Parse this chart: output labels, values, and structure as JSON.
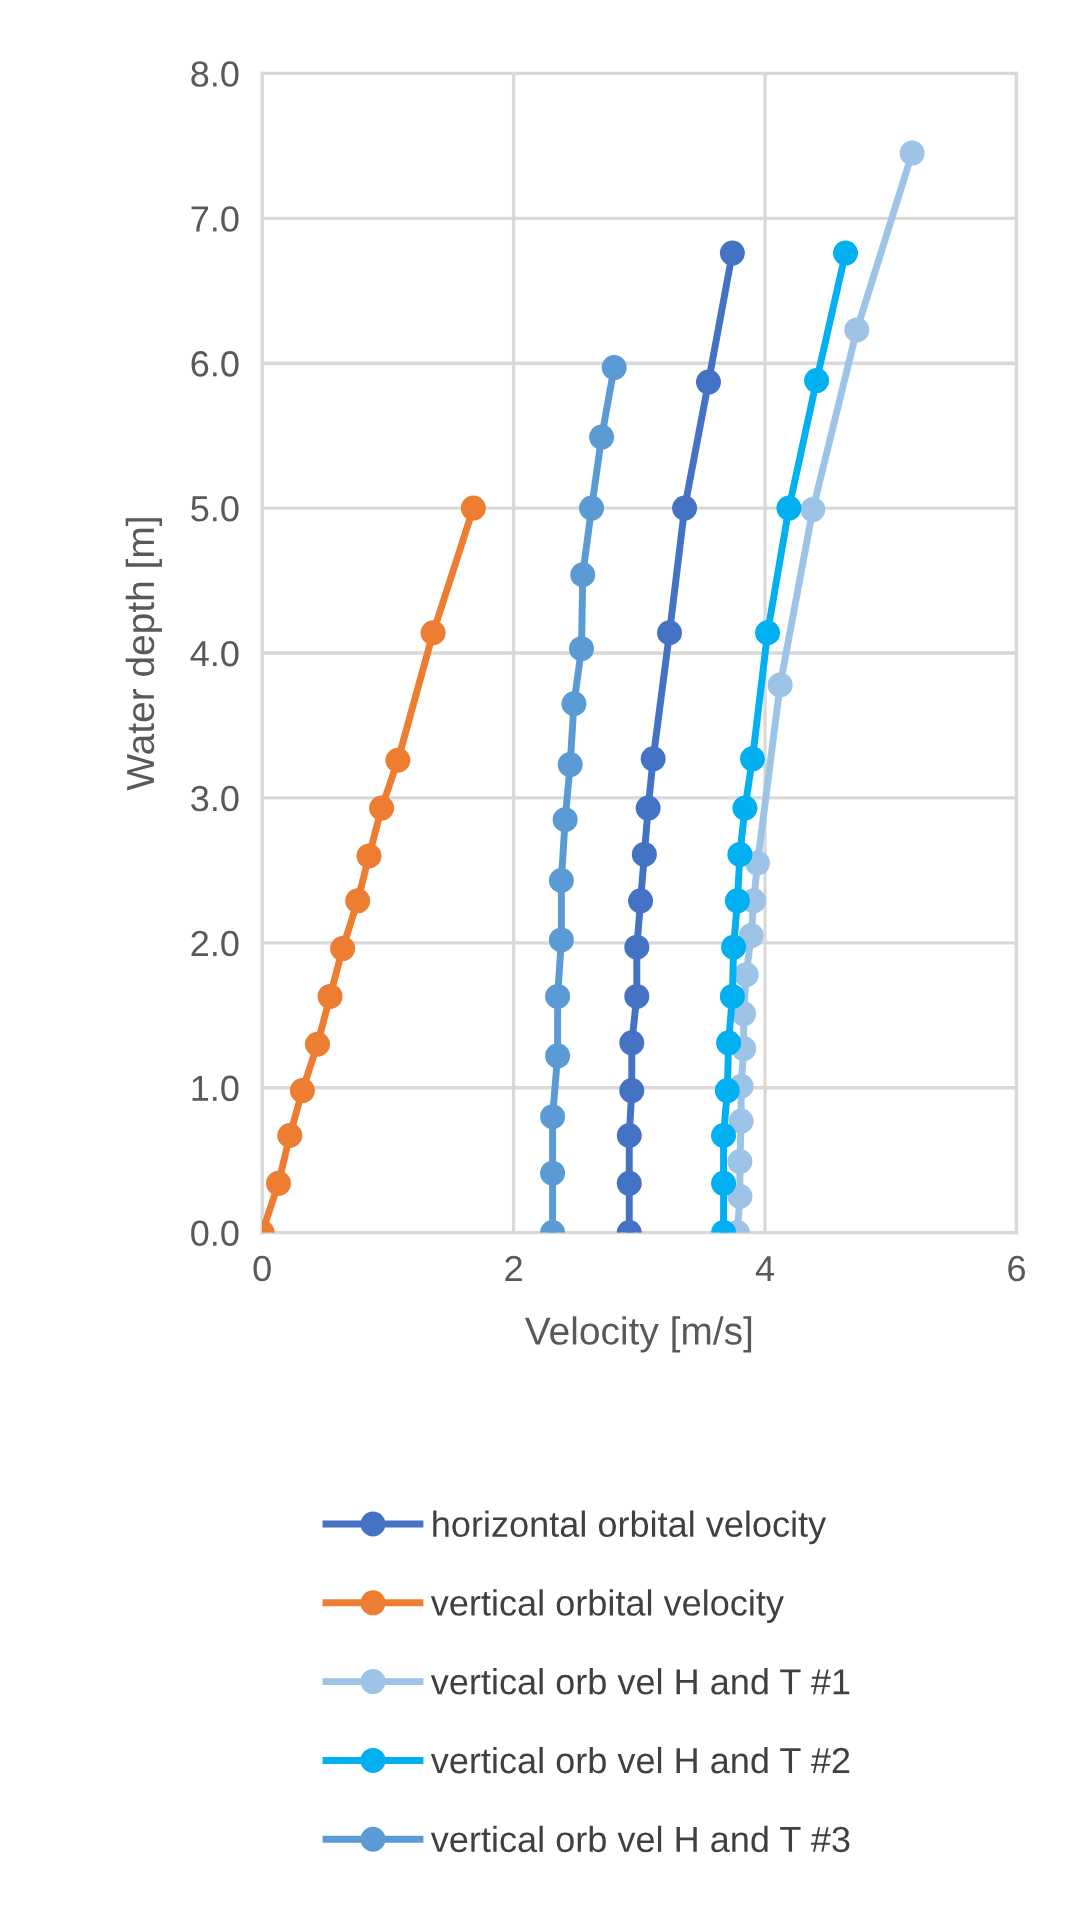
{
  "chart_data": {
    "type": "line",
    "xlabel": "Velocity [m/s]",
    "ylabel": "Water depth [m]",
    "xlim": [
      0,
      6
    ],
    "xticks": [
      0,
      2,
      4,
      6
    ],
    "ylim": [
      0,
      8
    ],
    "yticks": [
      {
        "value": 0,
        "label": "0.0"
      },
      {
        "value": 1,
        "label": "1.0"
      },
      {
        "value": 2,
        "label": "2.0"
      },
      {
        "value": 3,
        "label": "3.0"
      },
      {
        "value": 4,
        "label": "4.0"
      },
      {
        "value": 5,
        "label": "5.0"
      },
      {
        "value": 6,
        "label": "6.0"
      },
      {
        "value": 7,
        "label": "7.0"
      },
      {
        "value": 8,
        "label": "8.0"
      }
    ],
    "grid": true,
    "legend": "bottom",
    "marker": "circle",
    "line_style": "solid",
    "series": [
      {
        "name": "horizontal orbital velocity",
        "color": "#4472c4",
        "x": [
          2.92,
          2.92,
          2.92,
          2.94,
          2.94,
          2.98,
          2.98,
          3.01,
          3.04,
          3.07,
          3.11,
          3.24,
          3.36,
          3.55,
          3.74
        ],
        "values": [
          0,
          0.34,
          0.67,
          0.98,
          1.31,
          1.63,
          1.97,
          2.29,
          2.61,
          2.93,
          3.27,
          4.14,
          5.0,
          5.87,
          6.76
        ]
      },
      {
        "name": "vertical orbital velocity",
        "color": "#ed7d31",
        "x": [
          0,
          0.13,
          0.22,
          0.32,
          0.44,
          0.54,
          0.64,
          0.76,
          0.85,
          0.95,
          1.08,
          1.36,
          1.68
        ],
        "values": [
          0,
          0.34,
          0.67,
          0.98,
          1.3,
          1.63,
          1.96,
          2.29,
          2.6,
          2.93,
          3.26,
          4.14,
          5.0
        ]
      },
      {
        "name": "vertical orb vel H and T #1",
        "color": "#9dc3e6",
        "x": [
          3.78,
          3.8,
          3.8,
          3.81,
          3.81,
          3.83,
          3.83,
          3.85,
          3.89,
          3.91,
          3.94,
          4.12,
          4.38,
          4.73,
          5.17
        ],
        "values": [
          0,
          0.25,
          0.49,
          0.77,
          1.01,
          1.27,
          1.51,
          1.78,
          2.05,
          2.29,
          2.55,
          3.78,
          4.99,
          6.23,
          7.45
        ]
      },
      {
        "name": "vertical orb vel H and T #2",
        "color": "#00b0f0",
        "x": [
          3.67,
          3.67,
          3.67,
          3.7,
          3.71,
          3.74,
          3.75,
          3.78,
          3.8,
          3.84,
          3.9,
          4.02,
          4.19,
          4.41,
          4.64
        ],
        "values": [
          0,
          0.34,
          0.67,
          0.98,
          1.31,
          1.63,
          1.97,
          2.29,
          2.61,
          2.93,
          3.27,
          4.14,
          5.0,
          5.88,
          6.76
        ]
      },
      {
        "name": "vertical orb vel H and T #3",
        "color": "#5b9bd5",
        "x": [
          2.31,
          2.31,
          2.31,
          2.35,
          2.35,
          2.38,
          2.38,
          2.41,
          2.45,
          2.48,
          2.54,
          2.55,
          2.62,
          2.7,
          2.8
        ],
        "values": [
          0,
          0.41,
          0.8,
          1.22,
          1.63,
          2.02,
          2.43,
          2.85,
          3.23,
          3.65,
          4.03,
          4.54,
          5.0,
          5.49,
          5.97
        ]
      }
    ]
  }
}
